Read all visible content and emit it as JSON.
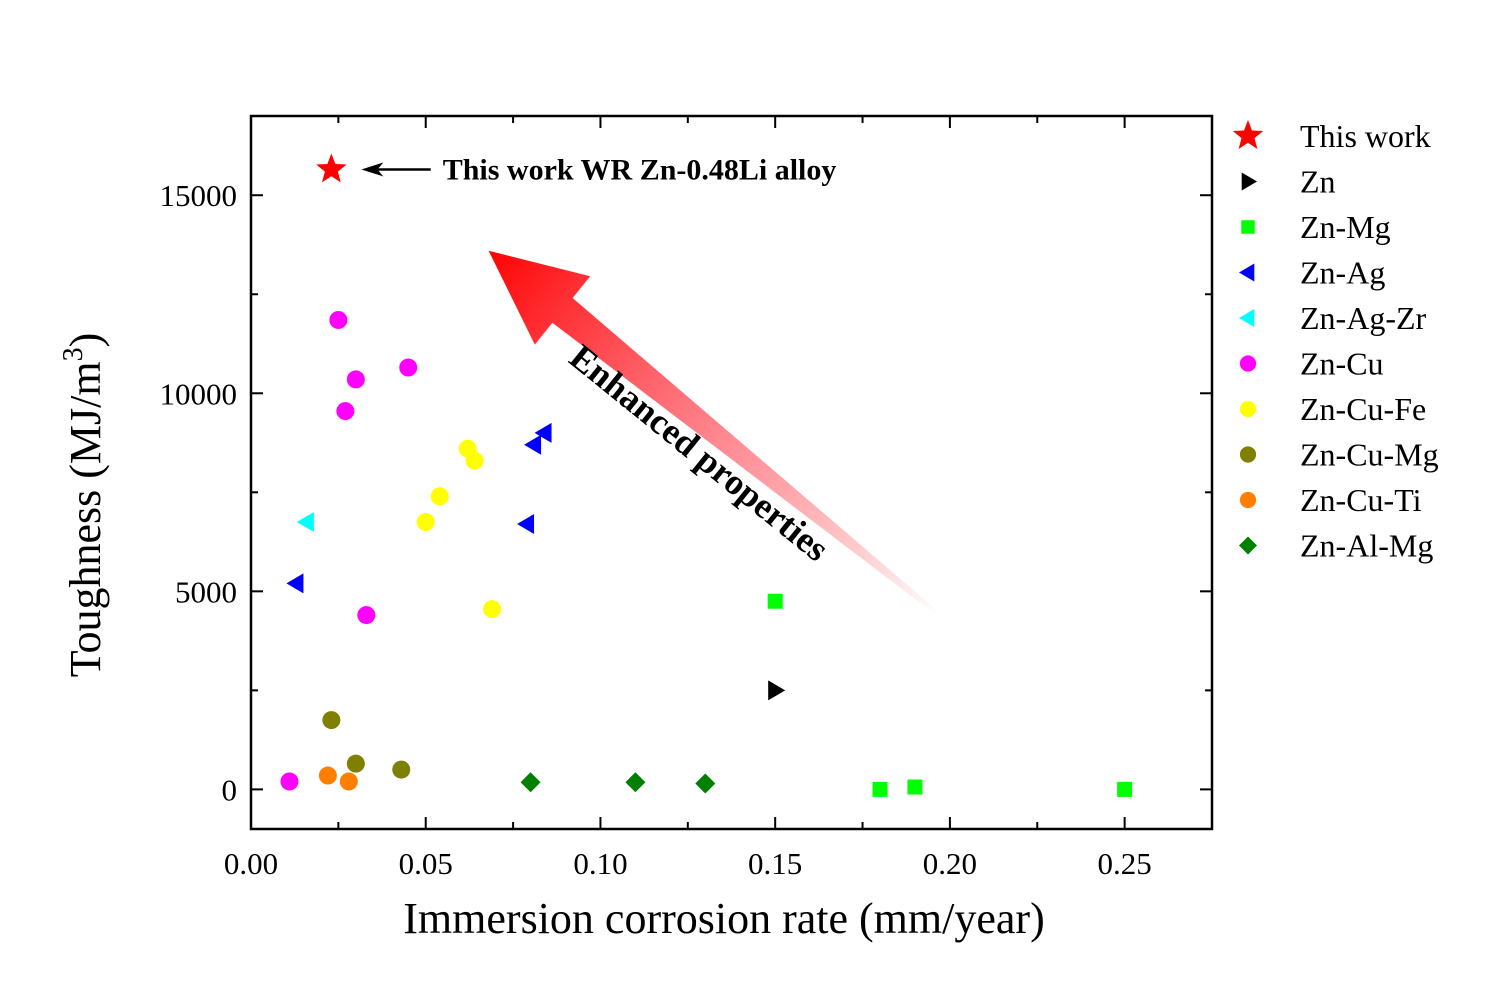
{
  "chart_data": {
    "type": "scatter",
    "xlabel": "Immersion corrosion rate (mm/year)",
    "ylabel": "Toughness (MJ/m",
    "ylabel_sup": "3",
    "ylabel_close": ")",
    "xlim": [
      0.0,
      0.275
    ],
    "ylim": [
      -1000,
      17000
    ],
    "x_ticks": [
      0.0,
      0.05,
      0.1,
      0.15,
      0.2,
      0.25
    ],
    "x_tick_labels": [
      "0.00",
      "0.05",
      "0.10",
      "0.15",
      "0.20",
      "0.25"
    ],
    "y_ticks": [
      0,
      5000,
      10000,
      15000
    ],
    "y_tick_labels": [
      "0",
      "5000",
      "10000",
      "15000"
    ],
    "legend_position": "right-outside",
    "series": [
      {
        "name": "This work",
        "marker": "star",
        "color": "#ff0000",
        "x": [
          0.023
        ],
        "y": [
          15650
        ]
      },
      {
        "name": "Zn",
        "marker": "triangle-right",
        "color": "#000000",
        "x": [
          0.15
        ],
        "y": [
          2500
        ]
      },
      {
        "name": "Zn-Mg",
        "marker": "square",
        "color": "#00ff00",
        "x": [
          0.15,
          0.18,
          0.19,
          0.25
        ],
        "y": [
          4750,
          0,
          60,
          0
        ]
      },
      {
        "name": "Zn-Ag",
        "marker": "triangle-left",
        "color": "#0000ff",
        "x": [
          0.013,
          0.079,
          0.081,
          0.084
        ],
        "y": [
          5200,
          6700,
          8700,
          9000
        ]
      },
      {
        "name": "Zn-Ag-Zr",
        "marker": "triangle-left",
        "color": "#00ffff",
        "x": [
          0.016
        ],
        "y": [
          6750
        ]
      },
      {
        "name": "Zn-Cu",
        "marker": "circle",
        "color": "#ff00ff",
        "x": [
          0.011,
          0.025,
          0.027,
          0.03,
          0.033,
          0.045
        ],
        "y": [
          200,
          11850,
          9550,
          10350,
          4400,
          10650
        ]
      },
      {
        "name": "Zn-Cu-Fe",
        "marker": "circle",
        "color": "#ffff00",
        "x": [
          0.05,
          0.054,
          0.062,
          0.064,
          0.069
        ],
        "y": [
          6750,
          7400,
          8600,
          8300,
          4550
        ]
      },
      {
        "name": "Zn-Cu-Mg",
        "marker": "circle",
        "color": "#808000",
        "x": [
          0.023,
          0.03,
          0.043
        ],
        "y": [
          1750,
          650,
          500
        ]
      },
      {
        "name": "Zn-Cu-Ti",
        "marker": "circle",
        "color": "#ff8000",
        "x": [
          0.022,
          0.028
        ],
        "y": [
          350,
          200
        ]
      },
      {
        "name": "Zn-Al-Mg",
        "marker": "diamond",
        "color": "#008000",
        "x": [
          0.08,
          0.11,
          0.13
        ],
        "y": [
          180,
          180,
          150
        ]
      }
    ],
    "annotations": {
      "this_work_label": "This work WR Zn-0.48Li alloy",
      "this_work_label_x": 0.052,
      "this_work_label_y": 15650,
      "enhanced_text": "Enhanced properties",
      "enhanced_arrow_from": [
        0.197,
        4400
      ],
      "enhanced_arrow_to": [
        0.068,
        13600
      ],
      "arrow_color": "#ff0000"
    }
  }
}
